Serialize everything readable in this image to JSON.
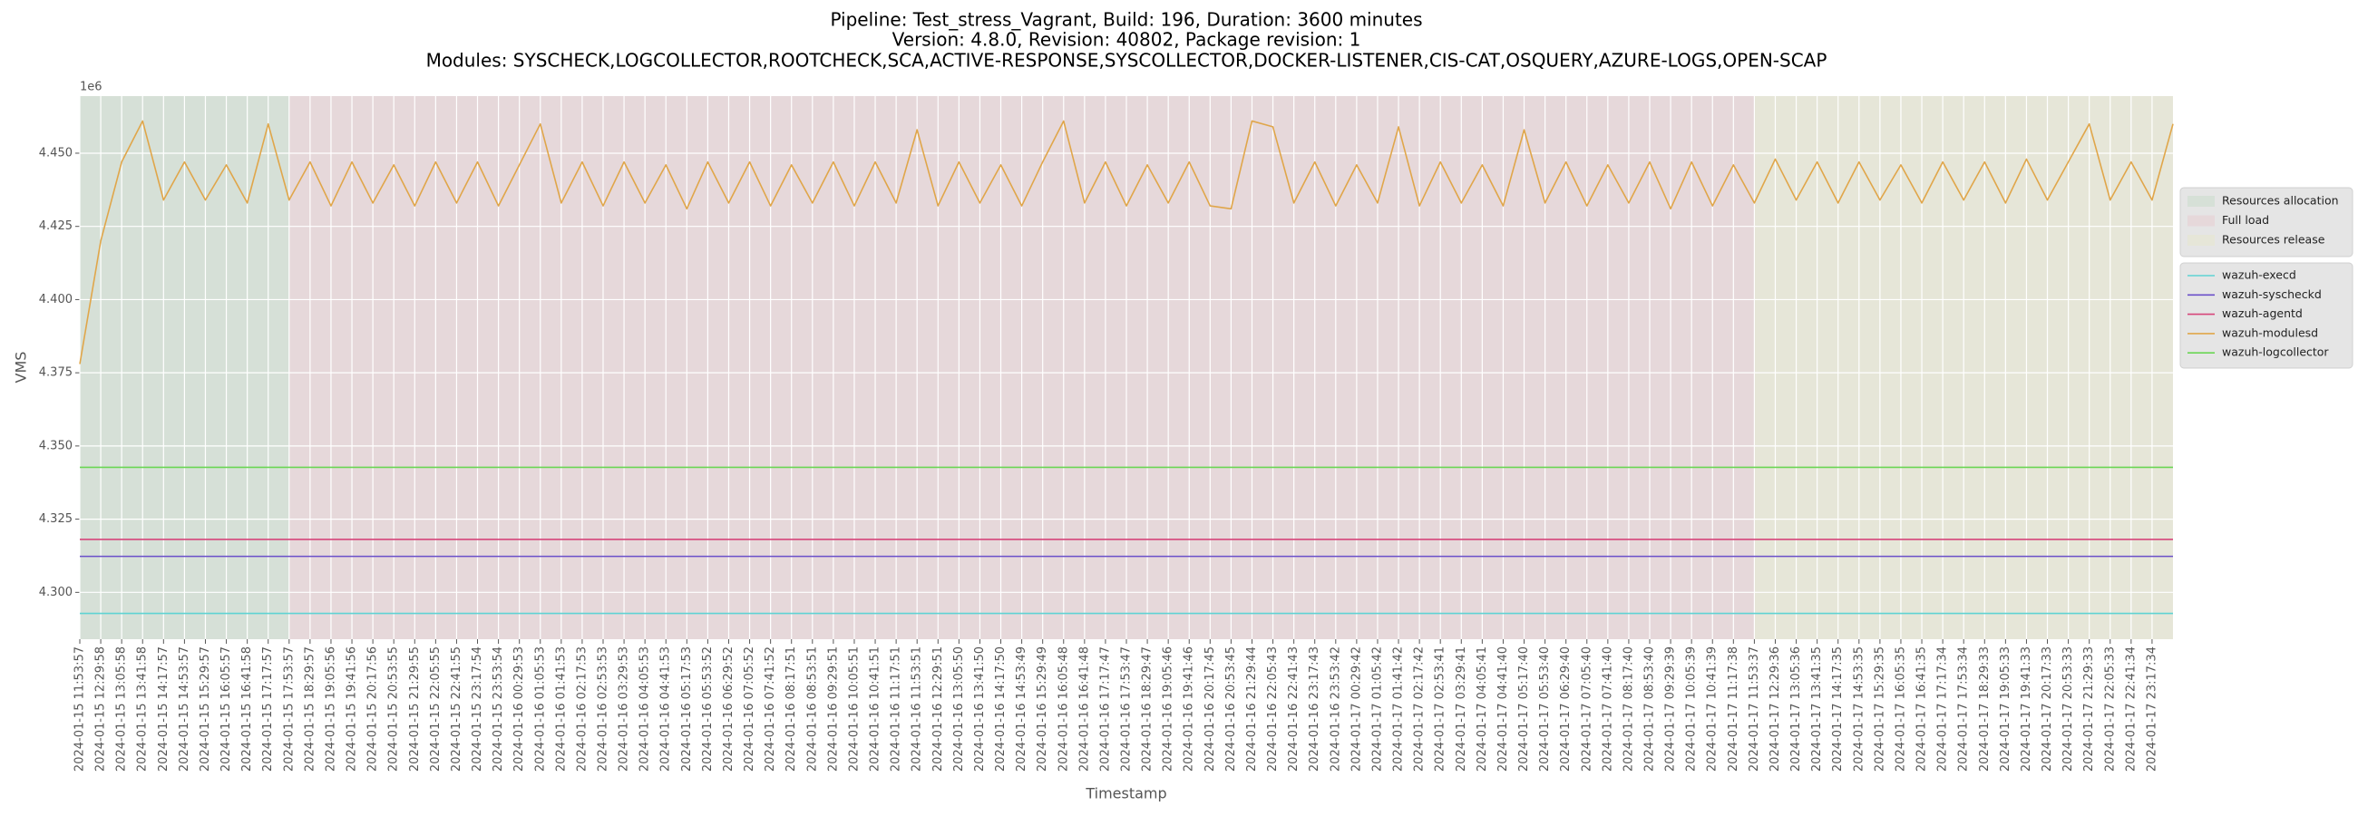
{
  "chart_data": {
    "type": "line",
    "title": [
      "Pipeline: Test_stress_Vagrant, Build: 196, Duration: 3600 minutes",
      "Version: 4.8.0, Revision: 40802, Package revision: 1",
      "Modules: SYSCHECK,LOGCOLLECTOR,ROOTCHECK,SCA,ACTIVE-RESPONSE,SYSCOLLECTOR,DOCKER-LISTENER,CIS-CAT,OSQUERY,AZURE-LOGS,OPEN-SCAP"
    ],
    "x_label": "Timestamp",
    "y_label": "VMS",
    "y_offset_label": "1e6",
    "grid": true,
    "legend_position": "right outside",
    "categories": [
      "2024-01-15 11:53:57",
      "2024-01-15 12:29:58",
      "2024-01-15 13:05:58",
      "2024-01-15 13:41:58",
      "2024-01-15 14:17:57",
      "2024-01-15 14:53:57",
      "2024-01-15 15:29:57",
      "2024-01-15 16:05:57",
      "2024-01-15 16:41:58",
      "2024-01-15 17:17:57",
      "2024-01-15 17:53:57",
      "2024-01-15 18:29:57",
      "2024-01-15 19:05:56",
      "2024-01-15 19:41:56",
      "2024-01-15 20:17:56",
      "2024-01-15 20:53:55",
      "2024-01-15 21:29:55",
      "2024-01-15 22:05:55",
      "2024-01-15 22:41:55",
      "2024-01-15 23:17:54",
      "2024-01-15 23:53:54",
      "2024-01-16 00:29:53",
      "2024-01-16 01:05:53",
      "2024-01-16 01:41:53",
      "2024-01-16 02:17:53",
      "2024-01-16 02:53:53",
      "2024-01-16 03:29:53",
      "2024-01-16 04:05:53",
      "2024-01-16 04:41:53",
      "2024-01-16 05:17:53",
      "2024-01-16 05:53:52",
      "2024-01-16 06:29:52",
      "2024-01-16 07:05:52",
      "2024-01-16 07:41:52",
      "2024-01-16 08:17:51",
      "2024-01-16 08:53:51",
      "2024-01-16 09:29:51",
      "2024-01-16 10:05:51",
      "2024-01-16 10:41:51",
      "2024-01-16 11:17:51",
      "2024-01-16 11:53:51",
      "2024-01-16 12:29:51",
      "2024-01-16 13:05:50",
      "2024-01-16 13:41:50",
      "2024-01-16 14:17:50",
      "2024-01-16 14:53:49",
      "2024-01-16 15:29:49",
      "2024-01-16 16:05:48",
      "2024-01-16 16:41:48",
      "2024-01-16 17:17:47",
      "2024-01-16 17:53:47",
      "2024-01-16 18:29:47",
      "2024-01-16 19:05:46",
      "2024-01-16 19:41:46",
      "2024-01-16 20:17:45",
      "2024-01-16 20:53:45",
      "2024-01-16 21:29:44",
      "2024-01-16 22:05:43",
      "2024-01-16 22:41:43",
      "2024-01-16 23:17:43",
      "2024-01-16 23:53:42",
      "2024-01-17 00:29:42",
      "2024-01-17 01:05:42",
      "2024-01-17 01:41:42",
      "2024-01-17 02:17:42",
      "2024-01-17 02:53:41",
      "2024-01-17 03:29:41",
      "2024-01-17 04:05:41",
      "2024-01-17 04:41:40",
      "2024-01-17 05:17:40",
      "2024-01-17 05:53:40",
      "2024-01-17 06:29:40",
      "2024-01-17 07:05:40",
      "2024-01-17 07:41:40",
      "2024-01-17 08:17:40",
      "2024-01-17 08:53:40",
      "2024-01-17 09:29:39",
      "2024-01-17 10:05:39",
      "2024-01-17 10:41:39",
      "2024-01-17 11:17:38",
      "2024-01-17 11:53:37",
      "2024-01-17 12:29:36",
      "2024-01-17 13:05:36",
      "2024-01-17 13:41:35",
      "2024-01-17 14:17:35",
      "2024-01-17 14:53:35",
      "2024-01-17 15:29:35",
      "2024-01-17 16:05:35",
      "2024-01-17 16:41:35",
      "2024-01-17 17:17:34",
      "2024-01-17 17:53:34",
      "2024-01-17 18:29:33",
      "2024-01-17 19:05:33",
      "2024-01-17 19:41:33",
      "2024-01-17 20:17:33",
      "2024-01-17 20:53:33",
      "2024-01-17 21:29:33",
      "2024-01-17 22:05:33",
      "2024-01-17 22:41:34",
      "2024-01-17 23:17:34",
      null
    ],
    "phases": [
      {
        "name": "Resources allocation",
        "color": "#d6e0d7",
        "start": "2024-01-15 11:53:57"
      },
      {
        "name": "Full load",
        "color": "#e6d8da",
        "start": "2024-01-15 17:53:57"
      },
      {
        "name": "Resources release",
        "color": "#e6e6d8",
        "start": "2024-01-17 11:53:37"
      }
    ],
    "ylim": [
      4.284,
      4.4695
    ],
    "yticks": [
      {
        "value": 4.3,
        "label": "4.300"
      },
      {
        "value": 4.325,
        "label": "4.325"
      },
      {
        "value": 4.35,
        "label": "4.350"
      },
      {
        "value": 4.375,
        "label": "4.375"
      },
      {
        "value": 4.4,
        "label": "4.400"
      },
      {
        "value": 4.425,
        "label": "4.425"
      },
      {
        "value": 4.45,
        "label": "4.450"
      }
    ],
    "series": [
      {
        "name": "wazuh-execd",
        "color": "#5fd3d3",
        "values": [
          4.2928,
          4.2928,
          4.2928,
          4.2928,
          4.2928,
          4.2928,
          4.2928,
          4.2928,
          4.2928,
          4.2928,
          4.2928,
          4.2928,
          4.2928,
          4.2928,
          4.2928,
          4.2928,
          4.2928,
          4.2928,
          4.2928,
          4.2928,
          4.2928,
          4.2928,
          4.2928,
          4.2928,
          4.2928,
          4.2928,
          4.2928,
          4.2928,
          4.2928,
          4.2928,
          4.2928,
          4.2928,
          4.2928,
          4.2928,
          4.2928,
          4.2928,
          4.2928,
          4.2928,
          4.2928,
          4.2928,
          4.2928,
          4.2928,
          4.2928,
          4.2928,
          4.2928,
          4.2928,
          4.2928,
          4.2928,
          4.2928,
          4.2928,
          4.2928,
          4.2928,
          4.2928,
          4.2928,
          4.2928,
          4.2928,
          4.2928,
          4.2928,
          4.2928,
          4.2928,
          4.2928,
          4.2928,
          4.2928,
          4.2928,
          4.2928,
          4.2928,
          4.2928,
          4.2928,
          4.2928,
          4.2928,
          4.2928,
          4.2928,
          4.2928,
          4.2928,
          4.2928,
          4.2928,
          4.2928,
          4.2928,
          4.2928,
          4.2928,
          4.2928,
          4.2928,
          4.2928,
          4.2928,
          4.2928,
          4.2928,
          4.2928,
          4.2928,
          4.2928,
          4.2928,
          4.2928,
          4.2928,
          4.2928,
          4.2928,
          4.2928,
          4.2928,
          4.2928,
          4.2928,
          4.2928,
          4.2928,
          4.2928
        ]
      },
      {
        "name": "wazuh-syscheckd",
        "color": "#6a4fc9",
        "values": [
          4.3123,
          4.3123,
          4.3123,
          4.3123,
          4.3123,
          4.3123,
          4.3123,
          4.3123,
          4.3123,
          4.3123,
          4.3123,
          4.3123,
          4.3123,
          4.3123,
          4.3123,
          4.3123,
          4.3123,
          4.3123,
          4.3123,
          4.3123,
          4.3123,
          4.3123,
          4.3123,
          4.3123,
          4.3123,
          4.3123,
          4.3123,
          4.3123,
          4.3123,
          4.3123,
          4.3123,
          4.3123,
          4.3123,
          4.3123,
          4.3123,
          4.3123,
          4.3123,
          4.3123,
          4.3123,
          4.3123,
          4.3123,
          4.3123,
          4.3123,
          4.3123,
          4.3123,
          4.3123,
          4.3123,
          4.3123,
          4.3123,
          4.3123,
          4.3123,
          4.3123,
          4.3123,
          4.3123,
          4.3123,
          4.3123,
          4.3123,
          4.3123,
          4.3123,
          4.3123,
          4.3123,
          4.3123,
          4.3123,
          4.3123,
          4.3123,
          4.3123,
          4.3123,
          4.3123,
          4.3123,
          4.3123,
          4.3123,
          4.3123,
          4.3123,
          4.3123,
          4.3123,
          4.3123,
          4.3123,
          4.3123,
          4.3123,
          4.3123,
          4.3123,
          4.3123,
          4.3123,
          4.3123,
          4.3123,
          4.3123,
          4.3123,
          4.3123,
          4.3123,
          4.3123,
          4.3123,
          4.3123,
          4.3123,
          4.3123,
          4.3123,
          4.3123,
          4.3123,
          4.3123,
          4.3123,
          4.3123,
          4.3123
        ]
      },
      {
        "name": "wazuh-agentd",
        "color": "#d6457a",
        "values": [
          4.3181,
          4.3181,
          4.3181,
          4.3181,
          4.3181,
          4.3181,
          4.3181,
          4.3181,
          4.3181,
          4.3181,
          4.3181,
          4.3181,
          4.3181,
          4.3181,
          4.3181,
          4.3181,
          4.3181,
          4.3181,
          4.3181,
          4.3181,
          4.3181,
          4.3181,
          4.3181,
          4.3181,
          4.3181,
          4.3181,
          4.3181,
          4.3181,
          4.3181,
          4.3181,
          4.3181,
          4.3181,
          4.3181,
          4.3181,
          4.3181,
          4.3181,
          4.3181,
          4.3181,
          4.3181,
          4.3181,
          4.3181,
          4.3181,
          4.3181,
          4.3181,
          4.3181,
          4.3181,
          4.3181,
          4.3181,
          4.3181,
          4.3181,
          4.3181,
          4.3181,
          4.3181,
          4.3181,
          4.3181,
          4.3181,
          4.3181,
          4.3181,
          4.3181,
          4.3181,
          4.3181,
          4.3181,
          4.3181,
          4.3181,
          4.3181,
          4.3181,
          4.3181,
          4.3181,
          4.3181,
          4.3181,
          4.3181,
          4.3181,
          4.3181,
          4.3181,
          4.3181,
          4.3181,
          4.3181,
          4.3181,
          4.3181,
          4.3181,
          4.3181,
          4.3181,
          4.3181,
          4.3181,
          4.3181,
          4.3181,
          4.3181,
          4.3181,
          4.3181,
          4.3181,
          4.3181,
          4.3181,
          4.3181,
          4.3181,
          4.3181,
          4.3181,
          4.3181,
          4.3181,
          4.3181,
          4.3181,
          4.3181
        ]
      },
      {
        "name": "wazuh-modulesd",
        "color": "#e0a64a",
        "values": [
          4.378,
          4.42,
          4.447,
          4.461,
          4.434,
          4.447,
          4.434,
          4.446,
          4.433,
          4.46,
          4.434,
          4.447,
          4.432,
          4.447,
          4.433,
          4.446,
          4.432,
          4.447,
          4.433,
          4.447,
          4.432,
          4.446,
          4.46,
          4.433,
          4.447,
          4.432,
          4.447,
          4.433,
          4.446,
          4.431,
          4.447,
          4.433,
          4.447,
          4.432,
          4.446,
          4.433,
          4.447,
          4.432,
          4.447,
          4.433,
          4.458,
          4.432,
          4.447,
          4.433,
          4.446,
          4.432,
          4.447,
          4.461,
          4.433,
          4.447,
          4.432,
          4.446,
          4.433,
          4.447,
          4.432,
          4.431,
          4.461,
          4.459,
          4.433,
          4.447,
          4.432,
          4.446,
          4.433,
          4.459,
          4.432,
          4.447,
          4.433,
          4.446,
          4.432,
          4.458,
          4.433,
          4.447,
          4.432,
          4.446,
          4.433,
          4.447,
          4.431,
          4.447,
          4.432,
          4.446,
          4.433,
          4.448,
          4.434,
          4.447,
          4.433,
          4.447,
          4.434,
          4.446,
          4.433,
          4.447,
          4.434,
          4.447,
          4.433,
          4.448,
          4.434,
          4.447,
          4.46,
          4.434,
          4.447,
          4.434,
          4.46
        ]
      },
      {
        "name": "wazuh-logcollector",
        "color": "#6ad654",
        "values": [
          4.3427,
          4.3427,
          4.3427,
          4.3427,
          4.3427,
          4.3427,
          4.3427,
          4.3427,
          4.3427,
          4.3427,
          4.3427,
          4.3427,
          4.3427,
          4.3427,
          4.3427,
          4.3427,
          4.3427,
          4.3427,
          4.3427,
          4.3427,
          4.3427,
          4.3427,
          4.3427,
          4.3427,
          4.3427,
          4.3427,
          4.3427,
          4.3427,
          4.3427,
          4.3427,
          4.3427,
          4.3427,
          4.3427,
          4.3427,
          4.3427,
          4.3427,
          4.3427,
          4.3427,
          4.3427,
          4.3427,
          4.3427,
          4.3427,
          4.3427,
          4.3427,
          4.3427,
          4.3427,
          4.3427,
          4.3427,
          4.3427,
          4.3427,
          4.3427,
          4.3427,
          4.3427,
          4.3427,
          4.3427,
          4.3427,
          4.3427,
          4.3427,
          4.3427,
          4.3427,
          4.3427,
          4.3427,
          4.3427,
          4.3427,
          4.3427,
          4.3427,
          4.3427,
          4.3427,
          4.3427,
          4.3427,
          4.3427,
          4.3427,
          4.3427,
          4.3427,
          4.3427,
          4.3427,
          4.3427,
          4.3427,
          4.3427,
          4.3427,
          4.3427,
          4.3427,
          4.3427,
          4.3427,
          4.3427,
          4.3427,
          4.3427,
          4.3427,
          4.3427,
          4.3427,
          4.3427,
          4.3427,
          4.3427,
          4.3427,
          4.3427,
          4.3427,
          4.3427,
          4.3427,
          4.3427,
          4.3427,
          4.3427
        ]
      }
    ]
  }
}
